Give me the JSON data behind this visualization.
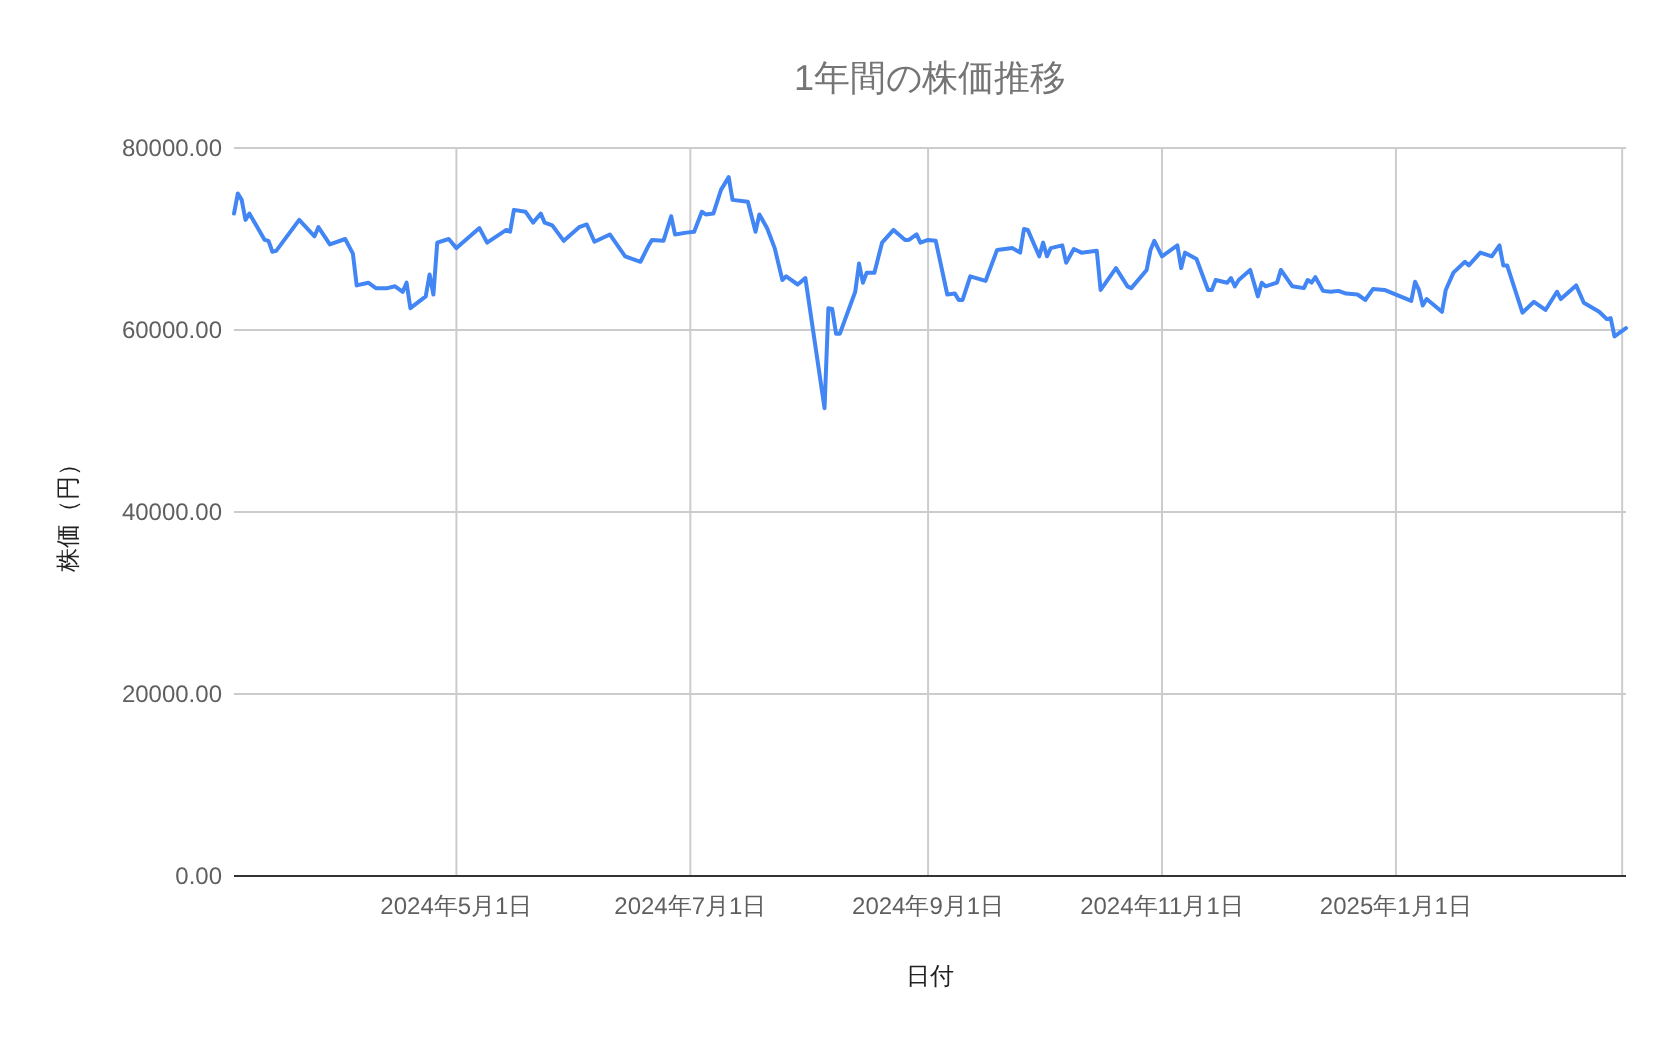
{
  "chart_data": {
    "type": "line",
    "title": "1年間の株価推移",
    "xlabel": "日付",
    "ylabel": "株価（円）",
    "xlim": [
      "2024-03-04",
      "2025-03-02"
    ],
    "ylim": [
      0,
      80000
    ],
    "xticks": [
      {
        "value": "2024-05-01",
        "label": "2024年5月1日"
      },
      {
        "value": "2024-07-01",
        "label": "2024年7月1日"
      },
      {
        "value": "2024-09-01",
        "label": "2024年9月1日"
      },
      {
        "value": "2024-11-01",
        "label": "2024年11月1日"
      },
      {
        "value": "2025-01-01",
        "label": "2025年1月1日"
      },
      {
        "value": "2025-03-01",
        "label": null
      }
    ],
    "yticks": [
      {
        "value": 0,
        "label": "0.00"
      },
      {
        "value": 20000,
        "label": "20000.00"
      },
      {
        "value": 40000,
        "label": "40000.00"
      },
      {
        "value": 60000,
        "label": "60000.00"
      },
      {
        "value": 80000,
        "label": "80000.00"
      }
    ],
    "grid": true,
    "marker": "none",
    "line_style": "solid",
    "series": [
      {
        "color": "#4285f4",
        "x": [
          "2024-03-04",
          "2024-03-05",
          "2024-03-06",
          "2024-03-07",
          "2024-03-08",
          "2024-03-12",
          "2024-03-13",
          "2024-03-14",
          "2024-03-15",
          "2024-03-21",
          "2024-03-25",
          "2024-03-26",
          "2024-03-29",
          "2024-04-02",
          "2024-04-04",
          "2024-04-05",
          "2024-04-08",
          "2024-04-10",
          "2024-04-13",
          "2024-04-15",
          "2024-04-17",
          "2024-04-18",
          "2024-04-19",
          "2024-04-23",
          "2024-04-24",
          "2024-04-25",
          "2024-04-26",
          "2024-04-29",
          "2024-05-01",
          "2024-05-07",
          "2024-05-09",
          "2024-05-14",
          "2024-05-15",
          "2024-05-16",
          "2024-05-19",
          "2024-05-21",
          "2024-05-23",
          "2024-05-24",
          "2024-05-26",
          "2024-05-29",
          "2024-06-02",
          "2024-06-04",
          "2024-06-06",
          "2024-06-10",
          "2024-06-14",
          "2024-06-18",
          "2024-06-20",
          "2024-06-21",
          "2024-06-24",
          "2024-06-26",
          "2024-06-27",
          "2024-06-30",
          "2024-07-02",
          "2024-07-04",
          "2024-07-05",
          "2024-07-07",
          "2024-07-09",
          "2024-07-11",
          "2024-07-12",
          "2024-07-16",
          "2024-07-18",
          "2024-07-19",
          "2024-07-21",
          "2024-07-23",
          "2024-07-25",
          "2024-07-26",
          "2024-07-29",
          "2024-07-31",
          "2024-08-05",
          "2024-08-06",
          "2024-08-07",
          "2024-08-08",
          "2024-08-09",
          "2024-08-13",
          "2024-08-14",
          "2024-08-15",
          "2024-08-16",
          "2024-08-18",
          "2024-08-20",
          "2024-08-23",
          "2024-08-26",
          "2024-08-27",
          "2024-08-29",
          "2024-08-30",
          "2024-09-01",
          "2024-09-03",
          "2024-09-06",
          "2024-09-08",
          "2024-09-09",
          "2024-09-10",
          "2024-09-12",
          "2024-09-16",
          "2024-09-19",
          "2024-09-23",
          "2024-09-25",
          "2024-09-26",
          "2024-09-27",
          "2024-09-30",
          "2024-10-01",
          "2024-10-02",
          "2024-10-03",
          "2024-10-06",
          "2024-10-07",
          "2024-10-09",
          "2024-10-11",
          "2024-10-15",
          "2024-10-16",
          "2024-10-20",
          "2024-10-23",
          "2024-10-24",
          "2024-10-28",
          "2024-10-29",
          "2024-10-30",
          "2024-11-01",
          "2024-11-05",
          "2024-11-06",
          "2024-11-07",
          "2024-11-10",
          "2024-11-13",
          "2024-11-14",
          "2024-11-15",
          "2024-11-18",
          "2024-11-19",
          "2024-11-20",
          "2024-11-21",
          "2024-11-24",
          "2024-11-26",
          "2024-11-27",
          "2024-11-28",
          "2024-12-01",
          "2024-12-02",
          "2024-12-05",
          "2024-12-08",
          "2024-12-09",
          "2024-12-10",
          "2024-12-11",
          "2024-12-13",
          "2024-12-15",
          "2024-12-17",
          "2024-12-19",
          "2024-12-22",
          "2024-12-24",
          "2024-12-26",
          "2024-12-29",
          "2025-01-05",
          "2025-01-06",
          "2025-01-07",
          "2025-01-08",
          "2025-01-09",
          "2025-01-13",
          "2025-01-14",
          "2025-01-16",
          "2025-01-19",
          "2025-01-20",
          "2025-01-23",
          "2025-01-26",
          "2025-01-28",
          "2025-01-29",
          "2025-01-30",
          "2025-02-03",
          "2025-02-06",
          "2025-02-09",
          "2025-02-12",
          "2025-02-13",
          "2025-02-17",
          "2025-02-19",
          "2025-02-23",
          "2025-02-25",
          "2025-02-26",
          "2025-02-27",
          "2025-03-02"
        ],
        "values": [
          72800,
          75000,
          74300,
          72100,
          72800,
          69900,
          69800,
          68600,
          68700,
          72100,
          70300,
          71300,
          69400,
          70000,
          68400,
          64900,
          65200,
          64600,
          64600,
          64800,
          64200,
          65200,
          62400,
          63700,
          66100,
          63900,
          69600,
          70000,
          69000,
          71200,
          69600,
          71000,
          70800,
          73200,
          73000,
          71800,
          72800,
          71800,
          71500,
          69800,
          71300,
          71600,
          69700,
          70500,
          68100,
          67500,
          69200,
          69900,
          69800,
          72500,
          70500,
          70700,
          70800,
          73000,
          72700,
          72800,
          75400,
          76800,
          74300,
          74100,
          70800,
          72700,
          71200,
          69000,
          65500,
          65900,
          65000,
          65700,
          51400,
          62400,
          62300,
          59600,
          59600,
          64200,
          67300,
          65200,
          66300,
          66300,
          69600,
          71000,
          69900,
          69900,
          70500,
          69600,
          69900,
          69800,
          63900,
          64000,
          63300,
          63300,
          65900,
          65400,
          68800,
          69000,
          68500,
          71100,
          71000,
          68100,
          69600,
          68100,
          69000,
          69300,
          67400,
          68900,
          68500,
          68700,
          64400,
          66800,
          64800,
          64600,
          66600,
          68800,
          69800,
          68100,
          69300,
          66800,
          68500,
          67800,
          64400,
          64400,
          65500,
          65200,
          65700,
          64800,
          65500,
          66600,
          63700,
          65200,
          64800,
          65200,
          66600,
          64800,
          64600,
          65500,
          65200,
          65800,
          64300,
          64200,
          64300,
          64000,
          63900,
          63300,
          64500,
          64400,
          63200,
          65300,
          64400,
          62700,
          63400,
          62000,
          64400,
          66300,
          67500,
          67100,
          68500,
          68100,
          69300,
          67100,
          67100,
          61900,
          63100,
          62200,
          64200,
          63400,
          64900,
          63000,
          62000,
          61200,
          61300,
          59300,
          60200
        ]
      }
    ]
  }
}
